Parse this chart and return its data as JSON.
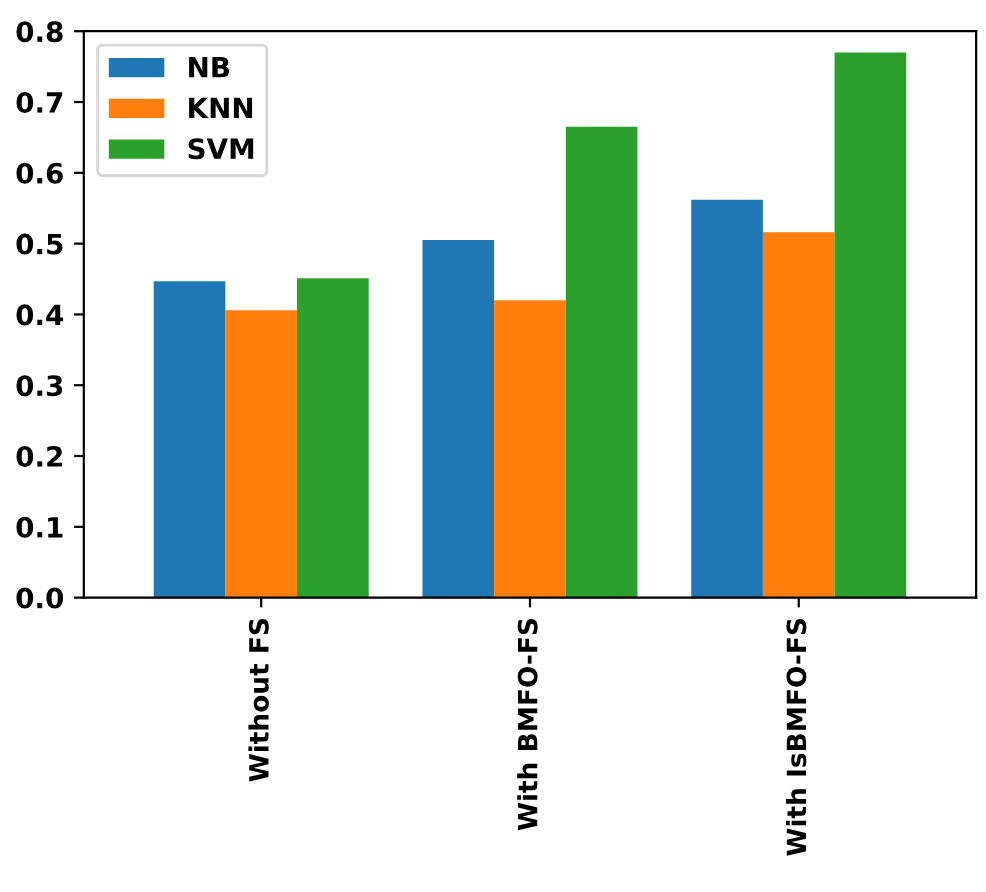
{
  "chart_data": {
    "type": "bar",
    "categories": [
      "Without FS",
      "With BMFO-FS",
      "With IsBMFO-FS"
    ],
    "series": [
      {
        "name": "NB",
        "color": "#1f77b4",
        "values": [
          0.447,
          0.505,
          0.562
        ]
      },
      {
        "name": "KNN",
        "color": "#ff7f0e",
        "values": [
          0.406,
          0.42,
          0.516
        ]
      },
      {
        "name": "SVM",
        "color": "#2ca02c",
        "values": [
          0.451,
          0.665,
          0.77
        ]
      }
    ],
    "ylim": [
      0,
      0.8
    ],
    "yticks": [
      {
        "value": 0,
        "label": "0.0"
      },
      {
        "value": 0.1,
        "label": "0.1"
      },
      {
        "value": 0.2,
        "label": "0.2"
      },
      {
        "value": 0.3,
        "label": "0.3"
      },
      {
        "value": 0.4,
        "label": "0.4"
      },
      {
        "value": 0.5,
        "label": "0.5"
      },
      {
        "value": 0.6,
        "label": "0.6"
      },
      {
        "value": 0.7,
        "label": "0.7"
      },
      {
        "value": 0.8,
        "label": "0.8"
      }
    ],
    "legend": "top left",
    "grid": false
  }
}
